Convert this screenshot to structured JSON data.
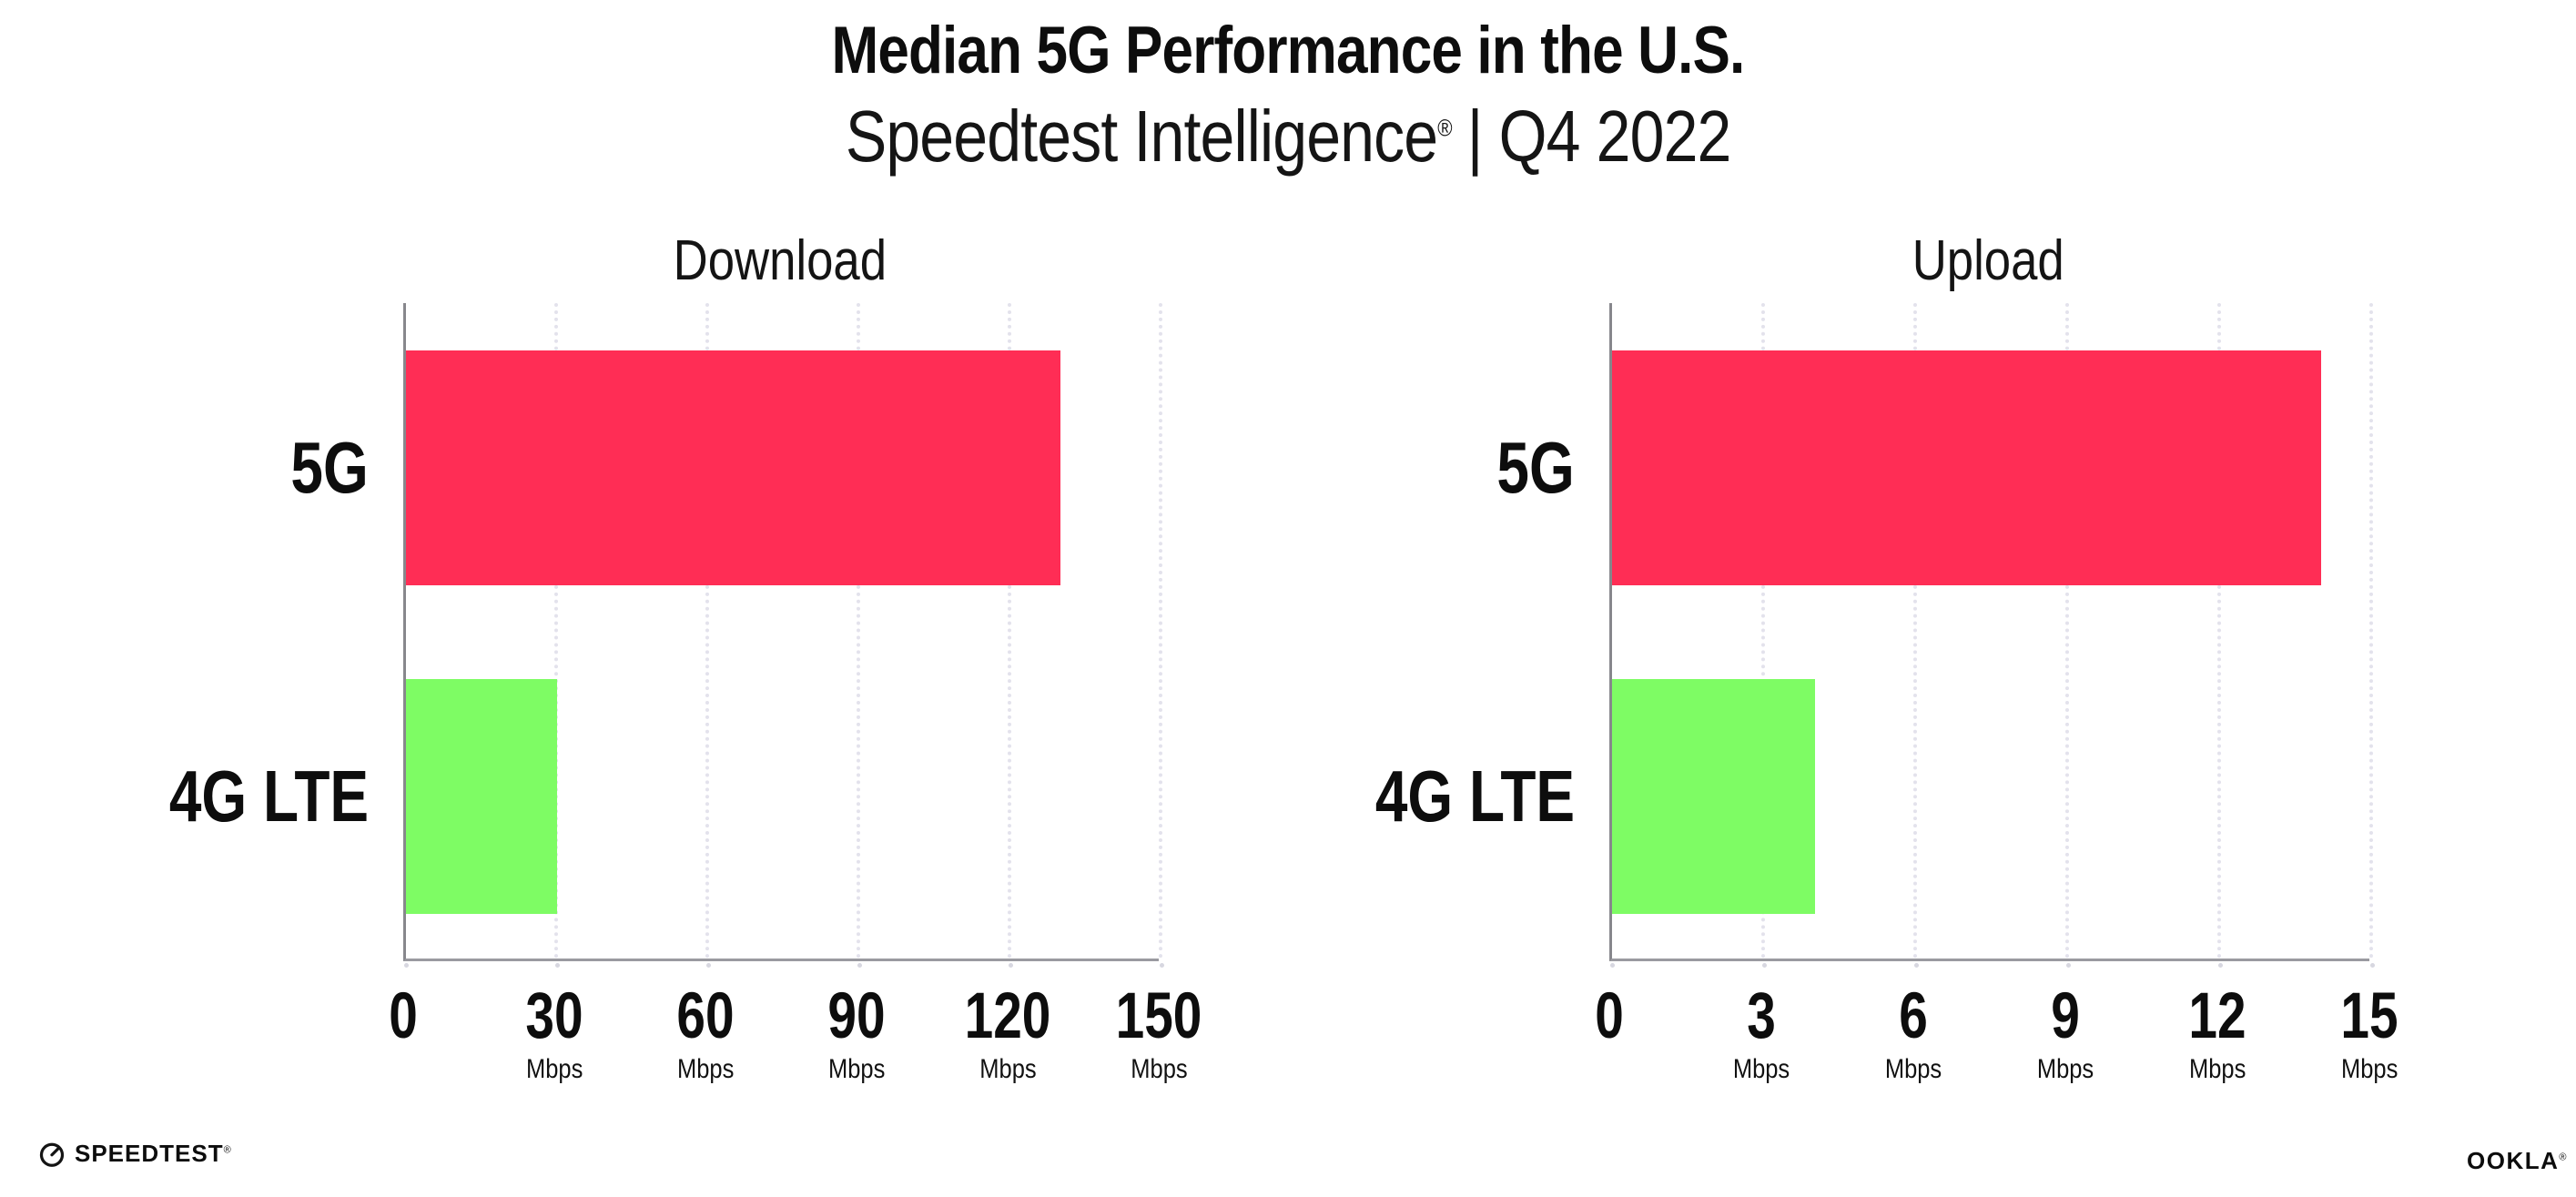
{
  "header": {
    "title": "Median 5G Performance in the U.S.",
    "subtitle_brand": "Speedtest Intelligence",
    "subtitle_reg": "®",
    "subtitle_rest": "| Q4 2022"
  },
  "footer": {
    "speedtest_logo": "SPEEDTEST",
    "speedtest_reg": "®",
    "ookla_logo": "OOKLA",
    "ookla_reg": "®"
  },
  "colors": {
    "bar_5g": "#FF2D55",
    "bar_4g_lte": "#7EFC64",
    "gridline": "#E3E2EC",
    "axis_vertical": "#87878C",
    "axis_horizontal": "#9A9AA0",
    "text": "#0D0D0D"
  },
  "chart_data": [
    {
      "type": "bar",
      "orientation": "horizontal",
      "title": "Download",
      "categories": [
        "5G",
        "4G LTE"
      ],
      "values": [
        130,
        30
      ],
      "unit": "Mbps",
      "xlim": [
        0,
        150
      ],
      "xticks": [
        0,
        30,
        60,
        90,
        120,
        150
      ],
      "bar_colors": [
        "#FF2D55",
        "#7EFC64"
      ],
      "grid": "dotted-vertical",
      "legend": "none"
    },
    {
      "type": "bar",
      "orientation": "horizontal",
      "title": "Upload",
      "categories": [
        "5G",
        "4G LTE"
      ],
      "values": [
        14,
        4
      ],
      "unit": "Mbps",
      "xlim": [
        0,
        15
      ],
      "xticks": [
        0,
        3,
        6,
        9,
        12,
        15
      ],
      "bar_colors": [
        "#FF2D55",
        "#7EFC64"
      ],
      "grid": "dotted-vertical",
      "legend": "none"
    }
  ]
}
